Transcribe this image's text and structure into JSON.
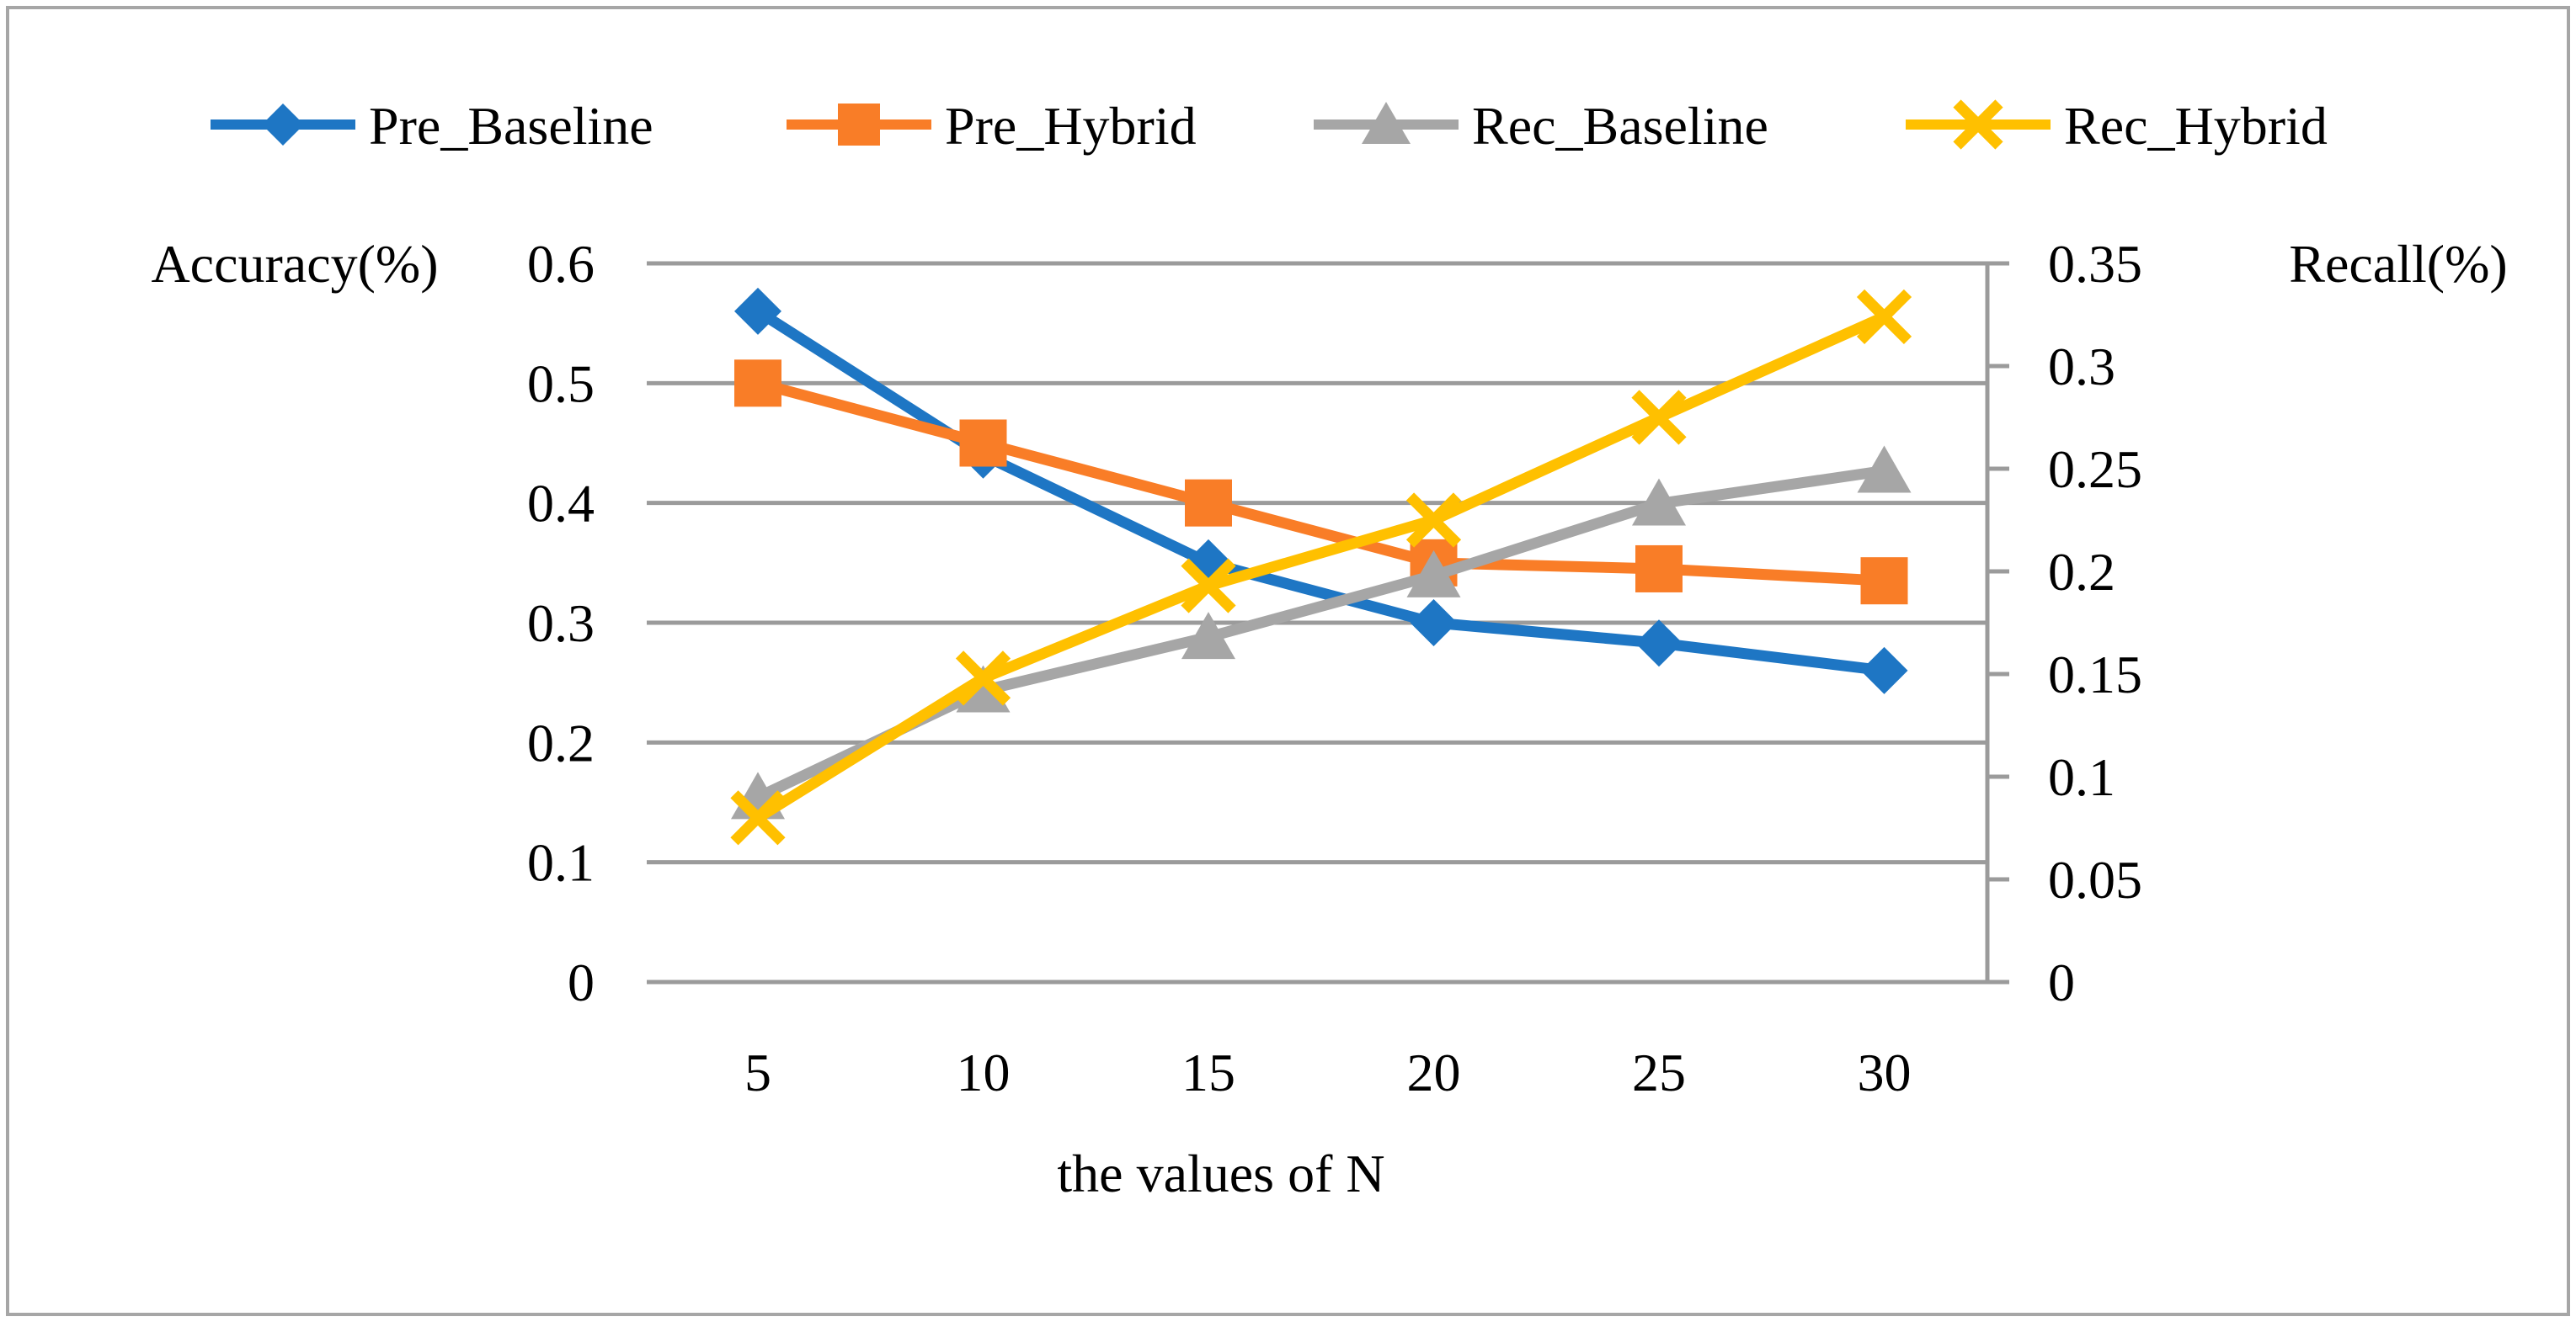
{
  "figure": {
    "background": "#FFFFFF",
    "border_color": "#A6A6A6",
    "gridline_color": "#9B9B9B",
    "text_color": "#000000"
  },
  "chart_data": {
    "type": "line",
    "title": "",
    "xlabel": "the values of N",
    "x_categories": [
      "5",
      "10",
      "15",
      "20",
      "25",
      "30"
    ],
    "x_values": [
      5,
      10,
      15,
      20,
      25,
      30
    ],
    "grid": true,
    "legend_position": "top-center",
    "left_axis": {
      "label": "Accuracy(%)",
      "min": 0,
      "max": 0.6,
      "step": 0.1,
      "tick_labels": [
        "0.6",
        "0.5",
        "0.4",
        "0.3",
        "0.2",
        "0.1",
        "0"
      ]
    },
    "right_axis": {
      "label": "Recall(%)",
      "min": 0,
      "max": 0.35,
      "step": 0.05,
      "tick_labels": [
        "0.35",
        "0.3",
        "0.25",
        "0.2",
        "0.15",
        "0.1",
        "0.05",
        "0"
      ]
    },
    "series": [
      {
        "name": "Pre_Baseline",
        "axis": "left",
        "color": "#1E76C4",
        "marker": "diamond",
        "values": [
          0.56,
          0.44,
          0.35,
          0.3,
          0.283,
          0.26
        ]
      },
      {
        "name": "Pre_Hybrid",
        "axis": "left",
        "color": "#F97D27",
        "marker": "square",
        "values": [
          0.5,
          0.45,
          0.4,
          0.35,
          0.345,
          0.335
        ]
      },
      {
        "name": "Rec_Baseline",
        "axis": "right",
        "color": "#A6A6A6",
        "marker": "triangle",
        "values": [
          0.09,
          0.142,
          0.168,
          0.198,
          0.233,
          0.249
        ]
      },
      {
        "name": "Rec_Hybrid",
        "axis": "right",
        "color": "#FFC000",
        "marker": "x",
        "values": [
          0.08,
          0.148,
          0.193,
          0.225,
          0.275,
          0.324
        ]
      }
    ]
  }
}
